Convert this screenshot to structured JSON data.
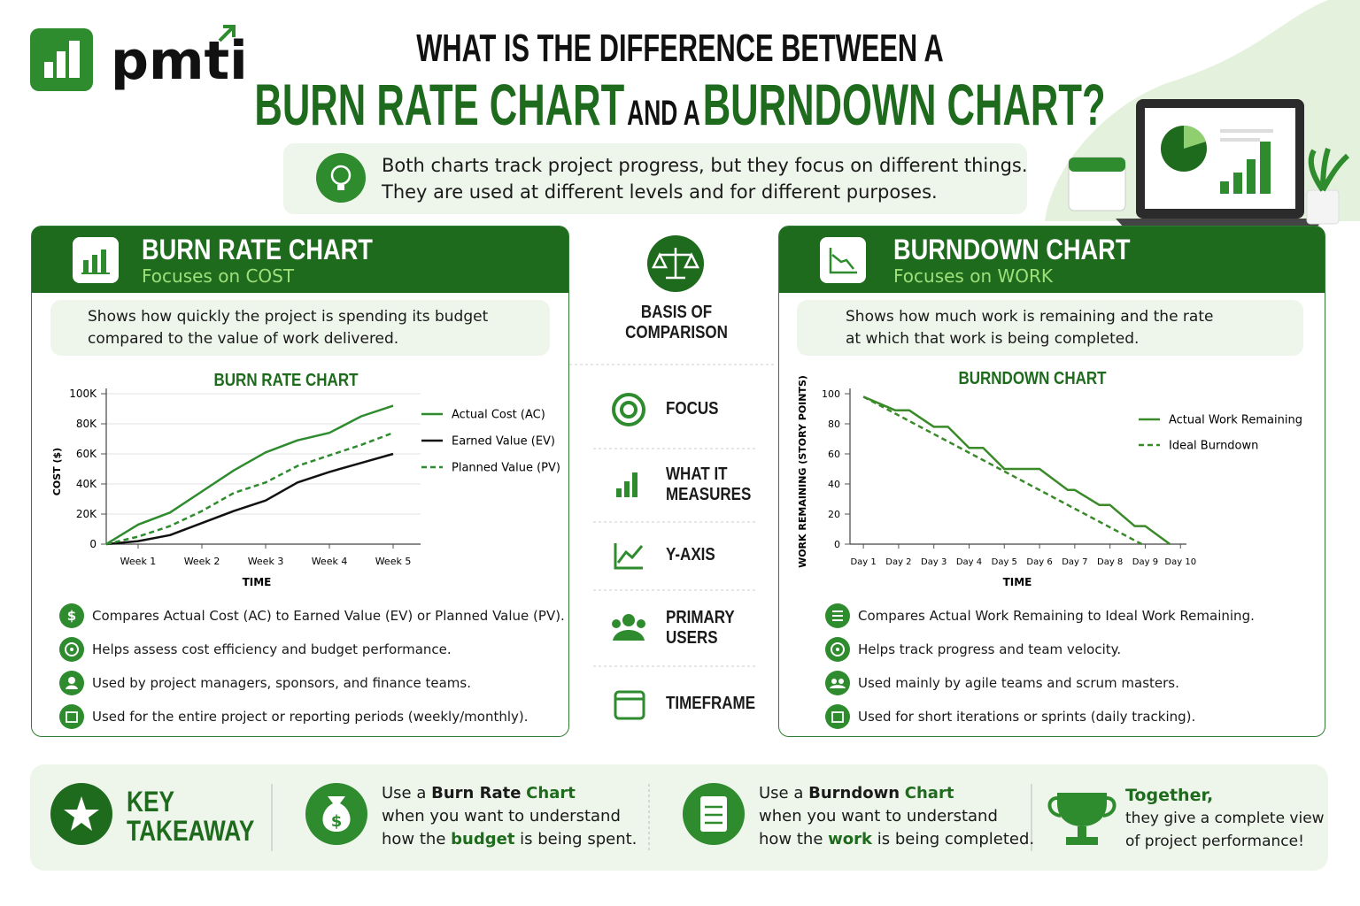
{
  "brand": "pmti",
  "title": {
    "line1": "WHAT IS THE DIFFERENCE BETWEEN A",
    "first": "BURN RATE CHART",
    "join": "AND A",
    "second": "BURNDOWN CHART?"
  },
  "intro": [
    "Both charts track project progress, but they focus on different things.",
    "They are used at different levels and for different purposes."
  ],
  "burn_rate": {
    "title": "BURN RATE CHART",
    "subtitle": "Focuses on COST",
    "description": [
      "Shows how quickly the project is spending its budget",
      "compared to the value of work delivered."
    ],
    "points": [
      "Compares Actual Cost (AC) to Earned Value (EV) or Planned Value (PV).",
      "Helps assess cost efficiency and budget performance.",
      "Used by project managers, sponsors, and finance teams.",
      "Used for the entire project or reporting periods (weekly/monthly)."
    ]
  },
  "comparison": {
    "heading": [
      "BASIS OF",
      "COMPARISON"
    ],
    "items": [
      [
        "FOCUS"
      ],
      [
        "WHAT IT",
        "MEASURES"
      ],
      [
        "Y-AXIS"
      ],
      [
        "PRIMARY",
        "USERS"
      ],
      [
        "TIMEFRAME"
      ]
    ]
  },
  "burndown": {
    "title": "BURNDOWN CHART",
    "subtitle": "Focuses on WORK",
    "description": [
      "Shows how much work is remaining and the rate",
      "at which that work is being completed."
    ],
    "points": [
      "Compares Actual Work Remaining to Ideal Work Remaining.",
      "Helps track progress and team velocity.",
      "Used mainly by agile teams and scrum masters.",
      "Used for short iterations or sprints (daily tracking)."
    ]
  },
  "takeaway": {
    "heading": [
      "KEY",
      "TAKEAWAY"
    ],
    "burn_rate": [
      [
        "Use a",
        "Burn Rate",
        "Chart"
      ],
      [
        "when you want to understand"
      ],
      [
        "how the",
        "budget",
        "is being spent."
      ]
    ],
    "burndown": [
      [
        "Use a",
        "Burndown",
        "Chart"
      ],
      [
        "when you want to understand"
      ],
      [
        "how the",
        "work",
        "is being completed."
      ]
    ],
    "together": [
      "Together,",
      "they give a complete view",
      "of project performance!"
    ]
  },
  "chart_data": [
    {
      "type": "line",
      "title": "BURN RATE CHART",
      "x_label": "TIME",
      "y_label": "COST ($)",
      "x": [
        0.5,
        1,
        1.5,
        2,
        2.5,
        3,
        3.5,
        4,
        4.5,
        5
      ],
      "xlim": [
        0.5,
        5.43
      ],
      "xticks": [
        {
          "value": 1,
          "label": "Week 1"
        },
        {
          "value": 2,
          "label": "Week 2"
        },
        {
          "value": 3,
          "label": "Week 3"
        },
        {
          "value": 4,
          "label": "Week 4"
        },
        {
          "value": 5,
          "label": "Week 5"
        }
      ],
      "ylim": [
        0,
        100000
      ],
      "yticks": [
        0,
        {
          "value": 20000,
          "label": "20K"
        },
        {
          "value": 40000,
          "label": "40K"
        },
        {
          "value": 60000,
          "label": "60K"
        },
        {
          "value": 80000,
          "label": "80K"
        },
        {
          "value": 100000,
          "label": "100K"
        }
      ],
      "grid": true,
      "legend": "right",
      "series": [
        {
          "name": "Actual Cost (AC)",
          "color": "#2e8b2e",
          "dash": false,
          "values": [
            0,
            13000,
            21000,
            35000,
            49000,
            61000,
            69000,
            74000,
            85000,
            92000
          ]
        },
        {
          "name": "Earned Value (EV)",
          "color": "#111111",
          "dash": false,
          "values": [
            0,
            2000,
            6000,
            14000,
            22000,
            29000,
            41000,
            48000,
            54000,
            60000
          ]
        },
        {
          "name": "Planned Value (PV)",
          "color": "#2e8b2e",
          "dash": true,
          "values": [
            0,
            5000,
            12000,
            22000,
            34000,
            41000,
            52000,
            59000,
            66000,
            74000
          ]
        }
      ]
    },
    {
      "type": "line",
      "title": "BURNDOWN CHART",
      "x_label": "TIME",
      "y_label": "WORK REMAINING (STORY POINTS)",
      "xlim": [
        0.62,
        10.17
      ],
      "xticks": [
        {
          "value": 1,
          "label": "Day 1"
        },
        {
          "value": 2,
          "label": "Day 2"
        },
        {
          "value": 3,
          "label": "Day 3"
        },
        {
          "value": 4,
          "label": "Day 4"
        },
        {
          "value": 5,
          "label": "Day 5"
        },
        {
          "value": 6,
          "label": "Day 6"
        },
        {
          "value": 7,
          "label": "Day 7"
        },
        {
          "value": 8,
          "label": "Day 8"
        },
        {
          "value": 9,
          "label": "Day 9"
        },
        {
          "value": 10,
          "label": "Day 10"
        }
      ],
      "ylim": [
        0,
        100
      ],
      "yticks": [
        0,
        20,
        40,
        60,
        80,
        100
      ],
      "grid": false,
      "legend": "right",
      "series": [
        {
          "name": "Actual Work Remaining",
          "color": "#3a8a2a",
          "dash": false,
          "x": [
            1,
            1.4,
            1.9,
            2.3,
            3.0,
            3.4,
            4.0,
            4.4,
            5.0,
            6.0,
            6.8,
            7.0,
            7.7,
            8.0,
            8.7,
            9.0,
            9.7
          ],
          "values": [
            98,
            94,
            89,
            89,
            78,
            78,
            64,
            64,
            50,
            50,
            36,
            36,
            26,
            26,
            12,
            12,
            0
          ]
        },
        {
          "name": "Ideal Burndown",
          "color": "#3a8a2a",
          "dash": true,
          "x": [
            1,
            8.9
          ],
          "values": [
            98,
            0
          ]
        }
      ]
    }
  ]
}
